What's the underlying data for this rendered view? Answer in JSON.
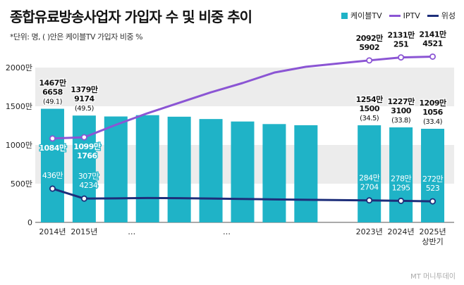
{
  "title": "종합유료방송사업자 가입자 수 및 비중 추이",
  "subtitle": "*단위: 명, (  )안은 케이블TV 가입자 비중 %",
  "watermark": "MT 머니투데이",
  "legend": [
    {
      "name": "케이블TV",
      "color": "#1fb3c7",
      "kind": "bar"
    },
    {
      "name": "IPTV",
      "color": "#8b55d4",
      "kind": "line"
    },
    {
      "name": "위성",
      "color": "#1d2e7a",
      "kind": "line"
    }
  ],
  "chart_data": {
    "type": "bar",
    "ylim": [
      0,
      2500
    ],
    "yticks": [
      {
        "value": 0,
        "label": "0"
      },
      {
        "value": 500,
        "label": "500만"
      },
      {
        "value": 1000,
        "label": "1000만"
      },
      {
        "value": 1500,
        "label": "1500만"
      },
      {
        "value": 2000,
        "label": "2000만"
      }
    ],
    "grid_bands": [
      [
        500,
        1000
      ],
      [
        1500,
        2000
      ]
    ],
    "categories": [
      "2014년",
      "2015년",
      "",
      "",
      "",
      "",
      "",
      "",
      "",
      "",
      "2023년",
      "2024년",
      "2025년 상반기"
    ],
    "ellipsis_labels": [
      {
        "after": 3,
        "label": "…"
      },
      {
        "after": 6,
        "label": "…"
      }
    ],
    "series": [
      {
        "name": "케이블TV",
        "color": "#1fb3c7",
        "values": [
          1467.6658,
          1379.9174,
          1368,
          1385,
          1365,
          1335,
          1303,
          1270,
          1255,
          null,
          1254.15,
          1227.31,
          1209.1056
        ]
      },
      {
        "name": "IPTV",
        "color": "#8b55d4",
        "values": [
          1084,
          1099.1766,
          1260,
          1410,
          1545,
          1680,
          1800,
          1935,
          2010,
          null,
          2092.5902,
          2131.0251,
          2141.4521
        ]
      },
      {
        "name": "위성",
        "color": "#1d2e7a",
        "values": [
          436,
          307.4234,
          310,
          315,
          313,
          308,
          302,
          297,
          292,
          null,
          284.2704,
          278.1295,
          272.0523
        ]
      }
    ],
    "bar_labels": [
      {
        "index": 0,
        "lines": [
          "1467만",
          "6658",
          "(49.1)"
        ]
      },
      {
        "index": 1,
        "lines": [
          "1379만",
          "9174",
          "(49.5)"
        ]
      },
      {
        "index": 10,
        "lines": [
          "1254만",
          "1500",
          "(34.5)"
        ]
      },
      {
        "index": 11,
        "lines": [
          "1227만",
          "3100",
          "(33.8)"
        ]
      },
      {
        "index": 12,
        "lines": [
          "1209만",
          "1056",
          "(33.4)"
        ]
      }
    ],
    "iptv_labels": [
      {
        "index": 0,
        "lines": [
          "1084만"
        ]
      },
      {
        "index": 1,
        "lines": [
          "1099만",
          "1766"
        ]
      },
      {
        "index": 10,
        "lines": [
          "2092만",
          "5902"
        ]
      },
      {
        "index": 11,
        "lines": [
          "2131만",
          "251"
        ]
      },
      {
        "index": 12,
        "lines": [
          "2141만",
          "4521"
        ]
      }
    ],
    "sat_labels": [
      {
        "index": 0,
        "lines": [
          "436만"
        ]
      },
      {
        "index": 1,
        "lines": [
          "307만",
          "4234"
        ]
      },
      {
        "index": 10,
        "lines": [
          "284만",
          "2704"
        ]
      },
      {
        "index": 11,
        "lines": [
          "278만",
          "1295"
        ]
      },
      {
        "index": 12,
        "lines": [
          "272만",
          "523"
        ]
      }
    ],
    "marked_points": [
      0,
      1,
      10,
      11,
      12
    ]
  }
}
